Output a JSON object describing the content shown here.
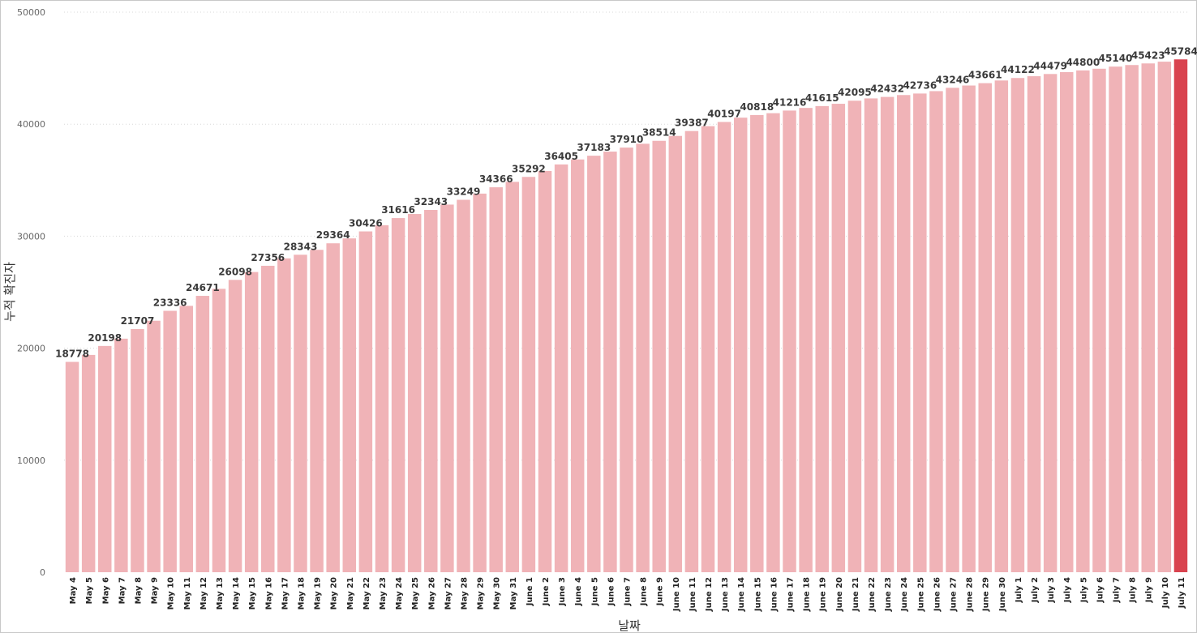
{
  "chart_data": {
    "type": "bar",
    "xlabel": "날짜",
    "ylabel": "누적 확진자",
    "ylim": [
      0,
      50000
    ],
    "yticks": [
      0,
      10000,
      20000,
      30000,
      40000,
      50000
    ],
    "grid": true,
    "categories": [
      "May 4",
      "May 5",
      "May 6",
      "May 7",
      "May 8",
      "May 9",
      "May 10",
      "May 11",
      "May 12",
      "May 13",
      "May 14",
      "May 15",
      "May 16",
      "May 17",
      "May 18",
      "May 19",
      "May 20",
      "May 21",
      "May 22",
      "May 23",
      "May 24",
      "May 25",
      "May 26",
      "May 27",
      "May 28",
      "May 29",
      "May 30",
      "May 31",
      "June 1",
      "June 2",
      "June 3",
      "June 4",
      "June 5",
      "June 6",
      "June 7",
      "June 8",
      "June 9",
      "June 10",
      "June 11",
      "June 12",
      "June 13",
      "June 14",
      "June 15",
      "June 16",
      "June 17",
      "June 18",
      "June 19",
      "June 20",
      "June 21",
      "June 22",
      "June 23",
      "June 24",
      "June 25",
      "June 26",
      "June 27",
      "June 28",
      "June 29",
      "June 30",
      "July 1",
      "July 2",
      "July 3",
      "July 4",
      "July 5",
      "July 6",
      "July 7",
      "July 8",
      "July 9",
      "July 10",
      "July 11"
    ],
    "values": [
      18778,
      19400,
      20198,
      20850,
      21707,
      22450,
      23336,
      23780,
      24671,
      25300,
      26098,
      26800,
      27356,
      28020,
      28343,
      28780,
      29364,
      29800,
      30426,
      30980,
      31616,
      31980,
      32343,
      32820,
      33249,
      33800,
      34366,
      34850,
      35292,
      35820,
      36405,
      36850,
      37183,
      37550,
      37910,
      38250,
      38514,
      38950,
      39387,
      39820,
      40197,
      40580,
      40818,
      40980,
      41216,
      41450,
      41615,
      41820,
      42095,
      42300,
      42432,
      42600,
      42736,
      42950,
      43246,
      43450,
      43661,
      43900,
      44122,
      44280,
      44479,
      44650,
      44800,
      44950,
      45140,
      45280,
      45423,
      45580,
      45784
    ],
    "data_labels": {
      "0": "18778",
      "2": "20198",
      "4": "21707",
      "6": "23336",
      "8": "24671",
      "10": "26098",
      "12": "27356",
      "14": "28343",
      "16": "29364",
      "18": "30426",
      "20": "31616",
      "22": "32343",
      "24": "33249",
      "26": "34366",
      "28": "35292",
      "30": "36405",
      "32": "37183",
      "34": "37910",
      "36": "38514",
      "38": "39387",
      "40": "40197",
      "42": "40818",
      "44": "41216",
      "46": "41615",
      "48": "42095",
      "50": "42432",
      "52": "42736",
      "54": "43246",
      "56": "43661",
      "58": "44122",
      "60": "44479",
      "62": "44800",
      "64": "45140",
      "66": "45423",
      "68": "45784"
    },
    "colors": {
      "bar": "#f0b3b7",
      "highlight": "#d9434f"
    },
    "highlight_index": 68
  }
}
